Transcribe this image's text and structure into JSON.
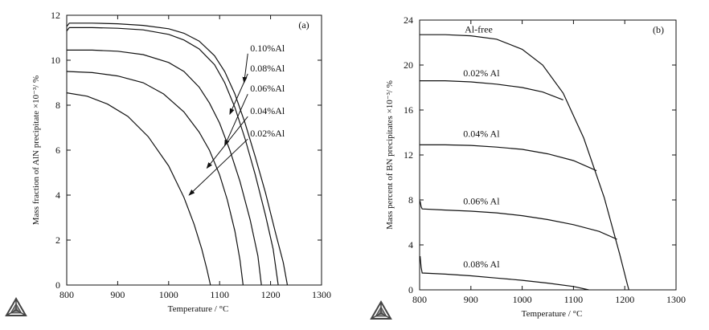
{
  "figure": {
    "ink_color": "#111111",
    "logo_icon": "thermo-calc-triangle-logo"
  },
  "chart_data": [
    {
      "type": "line",
      "panel_label": "(a)",
      "xlabel": "Temperature / °C",
      "ylabel": "Mass fraction of AlN precipitate ×10⁻³/ %",
      "xlim": [
        800,
        1300
      ],
      "ylim": [
        0,
        12
      ],
      "xticks": [
        800,
        900,
        1000,
        1100,
        1200,
        1300
      ],
      "yticks": [
        0,
        2,
        4,
        6,
        8,
        10,
        12
      ],
      "grid": false,
      "series": [
        {
          "name": "0.10%Al",
          "x": [
            800,
            805,
            850,
            900,
            950,
            1000,
            1030,
            1060,
            1090,
            1110,
            1130,
            1150,
            1170,
            1190,
            1210,
            1225,
            1233
          ],
          "y": [
            11.5,
            11.65,
            11.65,
            11.62,
            11.55,
            11.4,
            11.2,
            10.85,
            10.2,
            9.5,
            8.5,
            7.2,
            5.7,
            4.1,
            2.3,
            1.0,
            0.0
          ]
        },
        {
          "name": "0.08%Al",
          "x": [
            800,
            805,
            850,
            900,
            950,
            1000,
            1030,
            1060,
            1090,
            1110,
            1130,
            1150,
            1170,
            1190,
            1205,
            1215
          ],
          "y": [
            11.3,
            11.45,
            11.45,
            11.42,
            11.35,
            11.15,
            10.9,
            10.5,
            9.8,
            9.0,
            7.9,
            6.5,
            4.9,
            3.1,
            1.6,
            0.0
          ]
        },
        {
          "name": "0.06%Al",
          "x": [
            800,
            850,
            900,
            950,
            1000,
            1030,
            1060,
            1080,
            1100,
            1120,
            1140,
            1160,
            1175,
            1182
          ],
          "y": [
            10.45,
            10.45,
            10.4,
            10.25,
            9.9,
            9.5,
            8.8,
            8.1,
            7.2,
            6.0,
            4.6,
            2.9,
            1.3,
            0.0
          ]
        },
        {
          "name": "0.04%Al",
          "x": [
            800,
            850,
            900,
            950,
            990,
            1030,
            1060,
            1080,
            1100,
            1115,
            1130,
            1140,
            1146
          ],
          "y": [
            9.5,
            9.45,
            9.3,
            9.0,
            8.5,
            7.7,
            6.8,
            6.0,
            4.9,
            3.8,
            2.4,
            1.1,
            0.0
          ]
        },
        {
          "name": "0.02%Al",
          "x": [
            800,
            840,
            880,
            920,
            960,
            1000,
            1030,
            1050,
            1065,
            1075,
            1082
          ],
          "y": [
            8.55,
            8.4,
            8.05,
            7.5,
            6.6,
            5.3,
            3.9,
            2.7,
            1.6,
            0.7,
            0.0
          ]
        }
      ],
      "annotations": [
        {
          "text": "0.10%Al",
          "label_x": 1160,
          "label_y": 10.4,
          "arrow_to": [
            1148,
            9.0
          ]
        },
        {
          "text": "0.08%Al",
          "label_x": 1160,
          "label_y": 9.5,
          "arrow_to": [
            1120,
            7.6
          ]
        },
        {
          "text": "0.06%Al",
          "label_x": 1160,
          "label_y": 8.6,
          "arrow_to": [
            1110,
            6.2
          ]
        },
        {
          "text": "0.04%Al",
          "label_x": 1160,
          "label_y": 7.6,
          "arrow_to": [
            1075,
            5.2
          ]
        },
        {
          "text": "0.02%Al",
          "label_x": 1160,
          "label_y": 6.6,
          "arrow_to": [
            1040,
            4.0
          ]
        }
      ]
    },
    {
      "type": "line",
      "panel_label": "(b)",
      "xlabel": "Temperature / °C",
      "ylabel": "Mass percent of BN precipitates ×10⁻³/ %",
      "xlim": [
        800,
        1300
      ],
      "ylim": [
        0,
        24
      ],
      "xticks": [
        800,
        900,
        1000,
        1100,
        1200,
        1300
      ],
      "yticks": [
        0,
        4,
        8,
        12,
        16,
        20,
        24
      ],
      "grid": false,
      "series": [
        {
          "name": "Al-free",
          "x": [
            800,
            850,
            900,
            950,
            1000,
            1040,
            1080,
            1120,
            1160,
            1190,
            1205,
            1208
          ],
          "y": [
            22.7,
            22.7,
            22.6,
            22.3,
            21.4,
            20.0,
            17.5,
            13.5,
            8.2,
            3.2,
            0.5,
            0.0
          ]
        },
        {
          "name": "0.02% Al",
          "x": [
            800,
            850,
            900,
            950,
            1000,
            1040,
            1080
          ],
          "y": [
            18.6,
            18.6,
            18.5,
            18.3,
            18.0,
            17.6,
            16.9
          ]
        },
        {
          "name": "0.04% Al",
          "x": [
            800,
            850,
            900,
            950,
            1000,
            1050,
            1100,
            1145
          ],
          "y": [
            12.9,
            12.9,
            12.85,
            12.7,
            12.5,
            12.1,
            11.5,
            10.6
          ]
        },
        {
          "name": "0.06% Al",
          "x": [
            801,
            803,
            805,
            850,
            900,
            950,
            1000,
            1050,
            1100,
            1150,
            1185
          ],
          "y": [
            7.9,
            7.4,
            7.2,
            7.1,
            7.0,
            6.85,
            6.6,
            6.25,
            5.8,
            5.2,
            4.5
          ]
        },
        {
          "name": "0.08% Al",
          "x": [
            801,
            803,
            805,
            850,
            900,
            950,
            1000,
            1050,
            1100,
            1130
          ],
          "y": [
            3.0,
            2.0,
            1.5,
            1.4,
            1.25,
            1.05,
            0.85,
            0.6,
            0.3,
            0.0
          ]
        }
      ],
      "annotations": [
        {
          "text": "Al-free",
          "label_x": 888,
          "label_y": 22.9
        },
        {
          "text": "0.02% Al",
          "label_x": 885,
          "label_y": 19.0
        },
        {
          "text": "0.04% Al",
          "label_x": 885,
          "label_y": 13.6
        },
        {
          "text": "0.06% Al",
          "label_x": 885,
          "label_y": 7.6
        },
        {
          "text": "0.08% Al",
          "label_x": 885,
          "label_y": 2.0
        }
      ]
    }
  ]
}
